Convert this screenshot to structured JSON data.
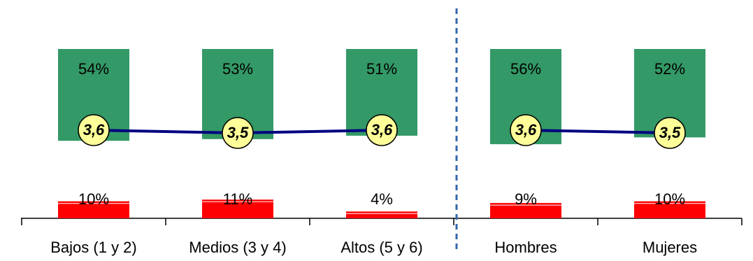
{
  "chart_data": {
    "type": "bar",
    "categories": [
      "Bajos (1 y 2)",
      "Medios (3 y 4)",
      "Altos (5 y 6)",
      "Hombres",
      "Mujeres"
    ],
    "divider_after": 2,
    "series": [
      {
        "type": "bar",
        "anchor": "top",
        "color": "#339966",
        "values": [
          54,
          53,
          51,
          56,
          52
        ],
        "value_labels": [
          "54%",
          "53%",
          "51%",
          "56%",
          "52%"
        ]
      },
      {
        "type": "bar",
        "anchor": "bottom",
        "color": "#ff0000",
        "values": [
          10,
          11,
          4,
          9,
          10
        ],
        "value_labels": [
          "10%",
          "11%",
          "4%",
          "9%",
          "10%"
        ]
      },
      {
        "type": "line",
        "color": "#000080",
        "marker_color": "#ffff99",
        "values": [
          3.6,
          3.5,
          3.6,
          3.6,
          3.5
        ],
        "value_labels": [
          "3,6",
          "3,5",
          "3,6",
          "3,6",
          "3,5"
        ]
      }
    ]
  }
}
